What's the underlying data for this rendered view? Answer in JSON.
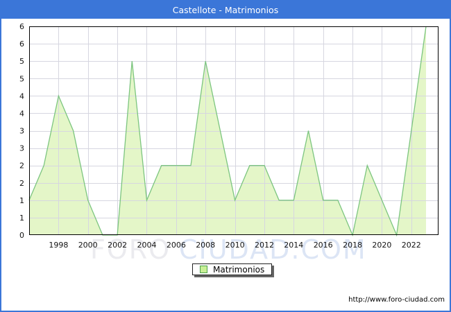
{
  "window": {
    "title": "Castellote - Matrimonios"
  },
  "legend": {
    "label": "Matrimonios"
  },
  "footer": {
    "url": "http://www.foro-ciudad.com"
  },
  "watermark": {
    "part1": "FORO",
    "part2": "CIUDAD.COM"
  },
  "chart_data": {
    "type": "area",
    "title": "Castellote - Matrimonios",
    "xlabel": "",
    "ylabel": "",
    "years": [
      1996,
      1997,
      1998,
      1999,
      2000,
      2001,
      2002,
      2003,
      2004,
      2005,
      2006,
      2007,
      2008,
      2009,
      2010,
      2011,
      2012,
      2013,
      2014,
      2015,
      2016,
      2017,
      2018,
      2019,
      2020,
      2021,
      2022,
      2023
    ],
    "values": [
      1,
      2,
      4,
      3,
      1,
      0,
      0,
      5,
      1,
      2,
      2,
      2,
      5,
      3,
      1,
      2,
      2,
      1,
      1,
      3,
      1,
      1,
      0,
      2,
      1,
      0,
      3,
      6
    ],
    "ylim": [
      0,
      6
    ],
    "ytick_interval": 0.5,
    "ytick_labels_top_to_bottom": [
      "6",
      "6",
      "5",
      "5",
      "4",
      "4",
      "3",
      "3",
      "2",
      "2",
      "1",
      "1",
      "0"
    ],
    "xtick_years": [
      1998,
      2000,
      2002,
      2004,
      2006,
      2008,
      2010,
      2012,
      2014,
      2016,
      2018,
      2020,
      2022
    ],
    "grid": true,
    "legend_entries": [
      "Matrimonios"
    ],
    "legend_position": "bottom-center",
    "colors": {
      "title_bar": "#3B76D8",
      "frame_border": "#3B76D8",
      "area_fill": "#E4F6C8",
      "area_line": "#7CC57F",
      "gridline": "#D6D6E0",
      "plot_border": "#000000",
      "axis_text": "#111111",
      "legend_swatch_fill": "#C9F096",
      "legend_swatch_border": "#4A9E4A",
      "watermark_foro": "#EBEBEF",
      "watermark_ciudad": "#DCE5F5"
    }
  }
}
